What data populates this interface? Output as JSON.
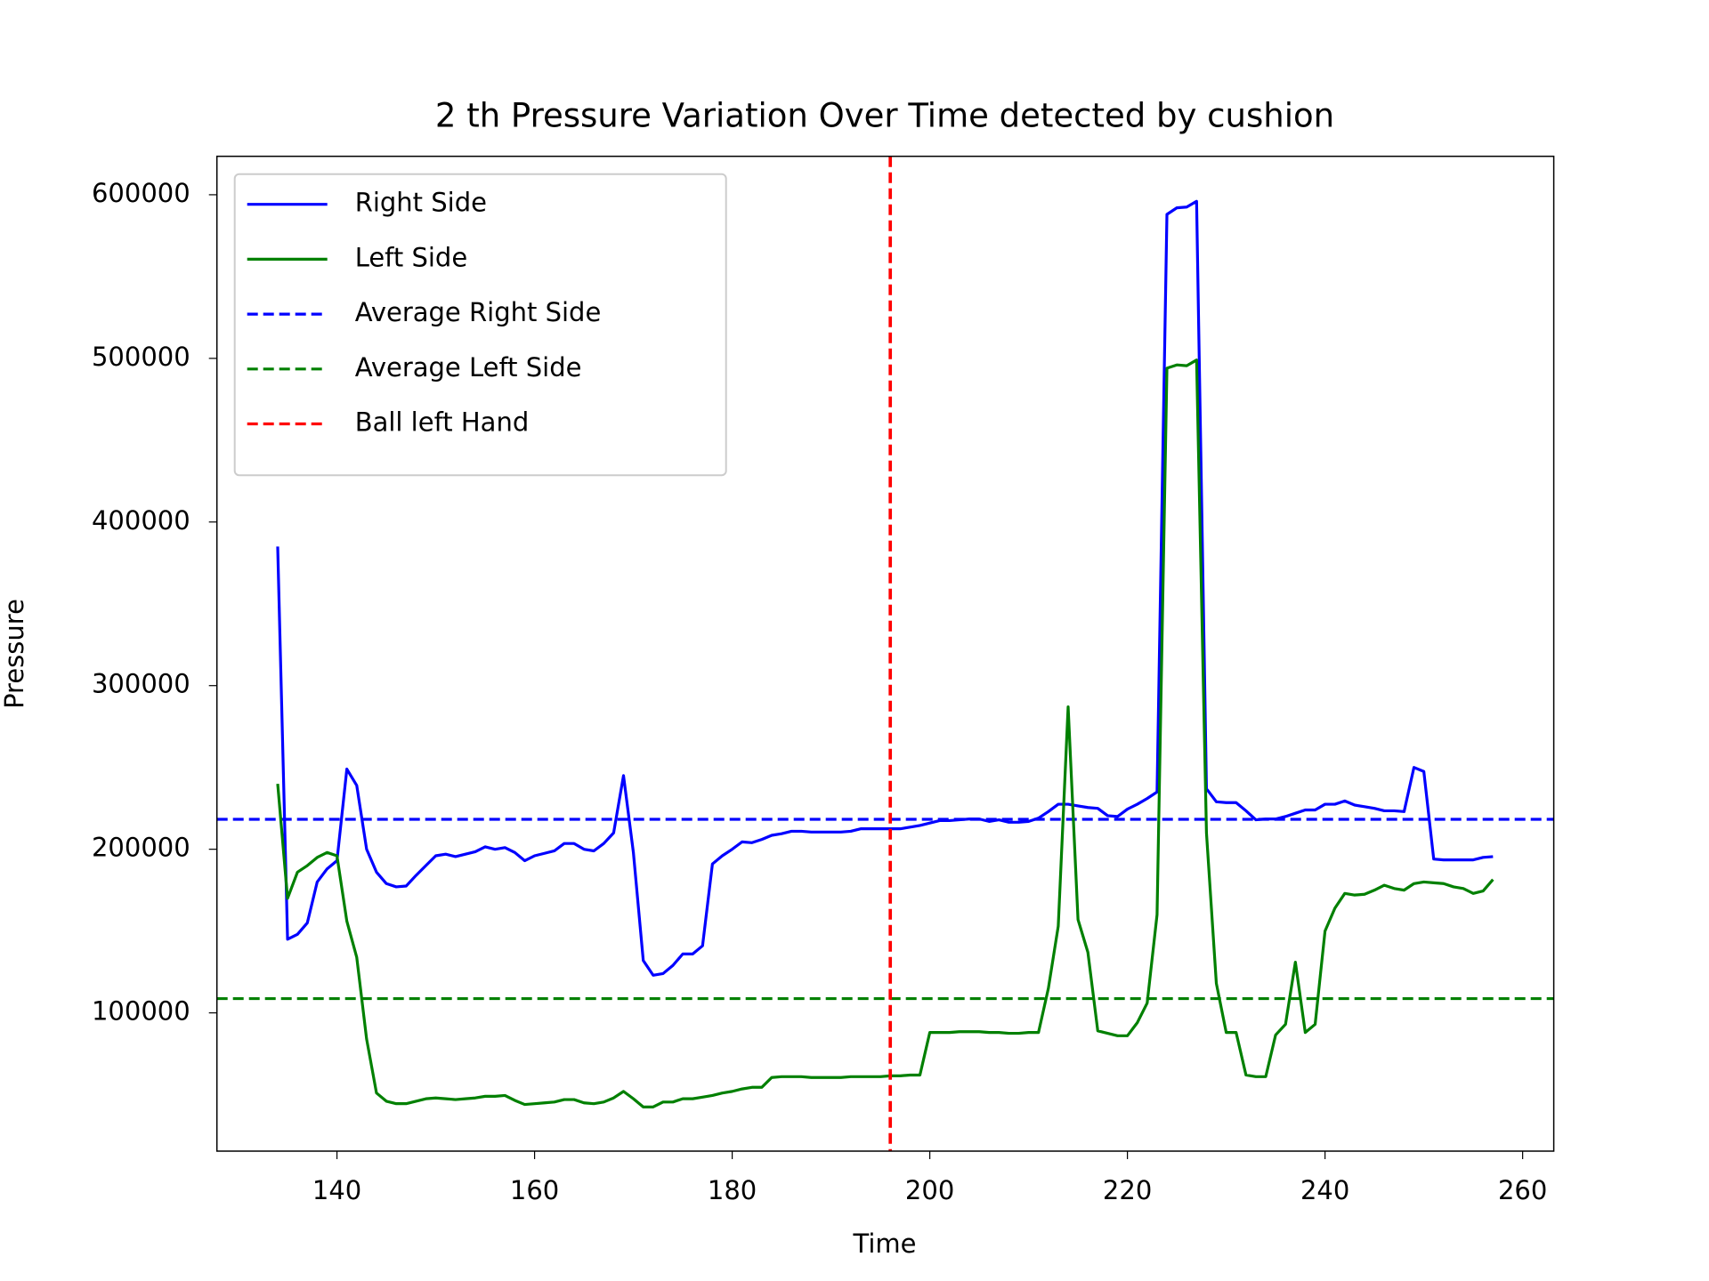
{
  "chart_data": {
    "type": "line",
    "title": "2 th  Pressure Variation Over Time detected by cushion",
    "x_label": "Time",
    "y_label": "Pressure",
    "x": [
      134,
      135,
      136,
      137,
      138,
      139,
      140,
      141,
      142,
      143,
      144,
      145,
      146,
      147,
      148,
      149,
      150,
      151,
      152,
      153,
      154,
      155,
      156,
      157,
      158,
      159,
      160,
      161,
      162,
      163,
      164,
      165,
      166,
      167,
      168,
      169,
      170,
      171,
      172,
      173,
      174,
      175,
      176,
      177,
      178,
      179,
      180,
      181,
      182,
      183,
      184,
      185,
      186,
      187,
      188,
      189,
      190,
      191,
      192,
      193,
      194,
      195,
      196,
      197,
      198,
      199,
      200,
      201,
      202,
      203,
      204,
      205,
      206,
      207,
      208,
      209,
      210,
      211,
      212,
      213,
      214,
      215,
      216,
      217,
      218,
      219,
      220,
      221,
      222,
      223,
      224,
      225,
      226,
      227,
      228,
      229,
      230,
      231,
      232,
      233,
      234,
      235,
      236,
      237,
      238,
      239,
      240,
      241,
      242,
      243,
      244,
      245,
      246,
      247,
      248,
      249,
      250,
      251,
      252,
      253,
      254,
      255,
      256,
      257
    ],
    "series": [
      {
        "name": "Right Side",
        "color": "#0000ff",
        "values": [
          385000,
          145000,
          148000,
          155000,
          180000,
          188000,
          193000,
          249000,
          239000,
          200000,
          186000,
          179000,
          177000,
          177500,
          184000,
          190000,
          196000,
          197000,
          195500,
          197000,
          198500,
          201500,
          200000,
          201000,
          198000,
          193000,
          196000,
          197500,
          199000,
          203500,
          203500,
          200000,
          199000,
          203500,
          210000,
          245000,
          198000,
          132000,
          123000,
          124000,
          129000,
          136000,
          136000,
          141000,
          191000,
          196000,
          200000,
          204500,
          204000,
          206000,
          208500,
          209500,
          211000,
          211000,
          210500,
          210500,
          210500,
          210500,
          211000,
          212500,
          212500,
          212500,
          212500,
          212500,
          213500,
          214500,
          216000,
          217500,
          217500,
          218000,
          218500,
          218500,
          217000,
          218000,
          216500,
          216500,
          217000,
          219000,
          223000,
          227500,
          227500,
          226500,
          225500,
          225000,
          220500,
          220000,
          224500,
          227500,
          231000,
          235000,
          588000,
          592000,
          592500,
          596000,
          237000,
          229000,
          228500,
          228500,
          223500,
          218000,
          218500,
          218500,
          220000,
          222000,
          224000,
          224000,
          227500,
          227500,
          229500,
          227000,
          226000,
          225000,
          223500,
          223500,
          223000,
          250000,
          247500,
          194000,
          193500,
          193500,
          193500,
          193500,
          195000,
          195500
        ]
      },
      {
        "name": "Left Side",
        "color": "#008000",
        "values": [
          240000,
          170000,
          186000,
          190000,
          195000,
          198000,
          196000,
          156000,
          134000,
          84000,
          51000,
          46000,
          44500,
          44500,
          46000,
          47500,
          48000,
          47500,
          47000,
          47500,
          48000,
          49000,
          49000,
          49500,
          46500,
          44000,
          44500,
          45000,
          45500,
          47000,
          47000,
          45000,
          44500,
          45500,
          48000,
          52000,
          47500,
          42500,
          42500,
          45500,
          45500,
          47500,
          47500,
          48500,
          49500,
          51000,
          52000,
          53500,
          54500,
          54500,
          60500,
          61000,
          61000,
          61000,
          60500,
          60500,
          60500,
          60500,
          61000,
          61000,
          61000,
          61000,
          61500,
          61500,
          62000,
          62000,
          88000,
          88000,
          88000,
          88500,
          88500,
          88500,
          88000,
          88000,
          87500,
          87500,
          88000,
          88000,
          115000,
          153000,
          287000,
          157000,
          137000,
          89000,
          87500,
          86000,
          86000,
          94000,
          106000,
          160000,
          494000,
          496000,
          495500,
          499000,
          210000,
          118000,
          88000,
          88000,
          62000,
          61000,
          61000,
          86500,
          93000,
          131000,
          88000,
          93000,
          150000,
          164000,
          173000,
          172000,
          172500,
          175000,
          178000,
          176000,
          175000,
          179000,
          180000,
          179500,
          179000,
          177000,
          176000,
          173000,
          174500,
          181500
        ]
      }
    ],
    "hlines": [
      {
        "name": "Average Right Side",
        "value": 218300,
        "color": "#0000ff"
      },
      {
        "name": "Average Left Side",
        "value": 108700,
        "color": "#008000"
      }
    ],
    "vlines": [
      {
        "name": "Ball left Hand",
        "value": 196,
        "color": "#ff0000"
      }
    ],
    "xlim": [
      127.85,
      263.15
    ],
    "ylim": [
      15500,
      623500
    ],
    "xticks": [
      140,
      160,
      180,
      200,
      220,
      240,
      260
    ],
    "yticks": [
      100000,
      200000,
      300000,
      400000,
      500000,
      600000
    ],
    "legend": "upper left"
  }
}
